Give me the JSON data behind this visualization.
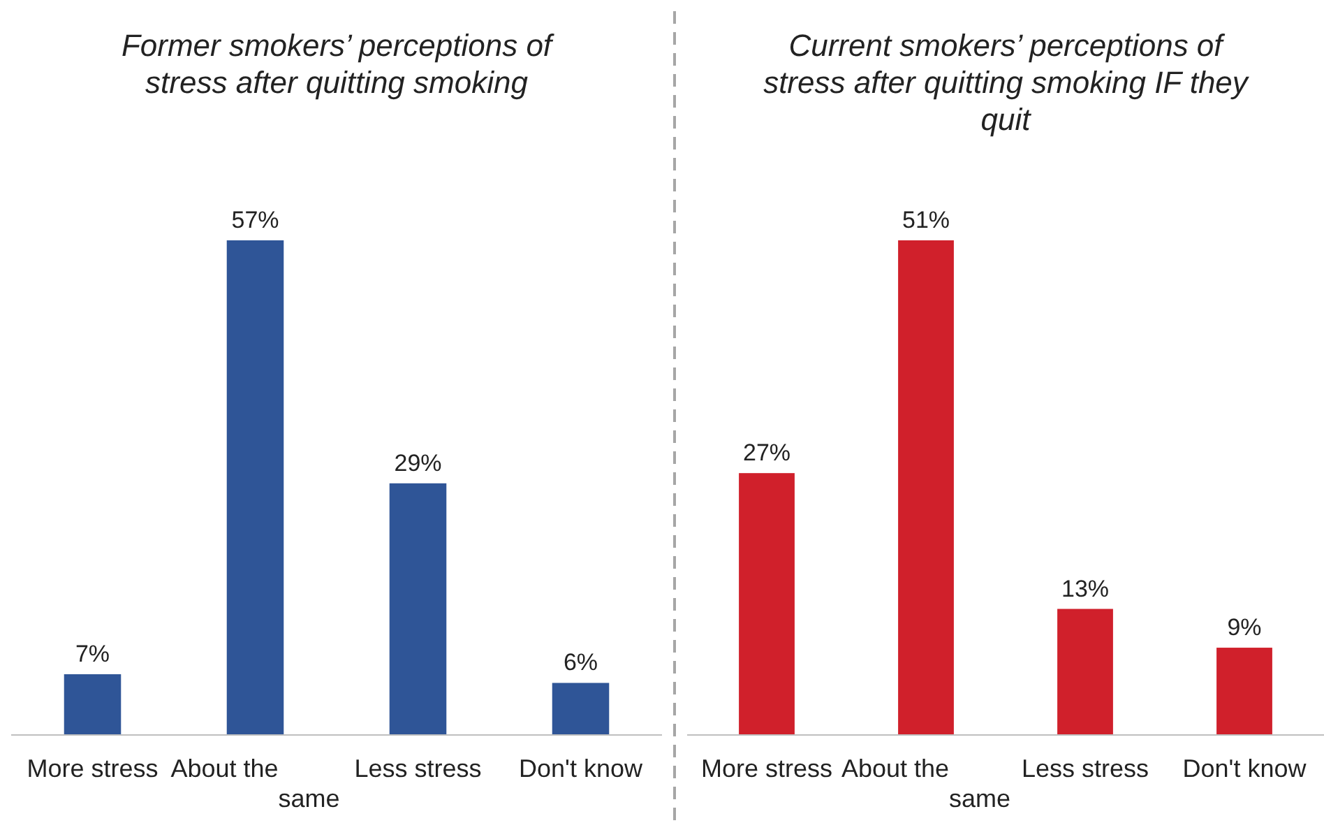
{
  "chart_data": [
    {
      "type": "bar",
      "title": "Former smokers’ perceptions of stress after quitting smoking",
      "categories": [
        "More stress",
        "About the same",
        "Less stress",
        "Don't know"
      ],
      "values": [
        7,
        57,
        29,
        6
      ],
      "value_labels": [
        "7%",
        "57%",
        "29%",
        "6%"
      ],
      "color": "#2f5597"
    },
    {
      "type": "bar",
      "title": "Current smokers’ perceptions of stress after quitting smoking IF they quit",
      "categories": [
        "More stress",
        "About the same",
        "Less stress",
        "Don't know"
      ],
      "values": [
        27,
        51,
        13,
        9
      ],
      "value_labels": [
        "27%",
        "51%",
        "13%",
        "9%"
      ],
      "color": "#d0202b"
    }
  ]
}
